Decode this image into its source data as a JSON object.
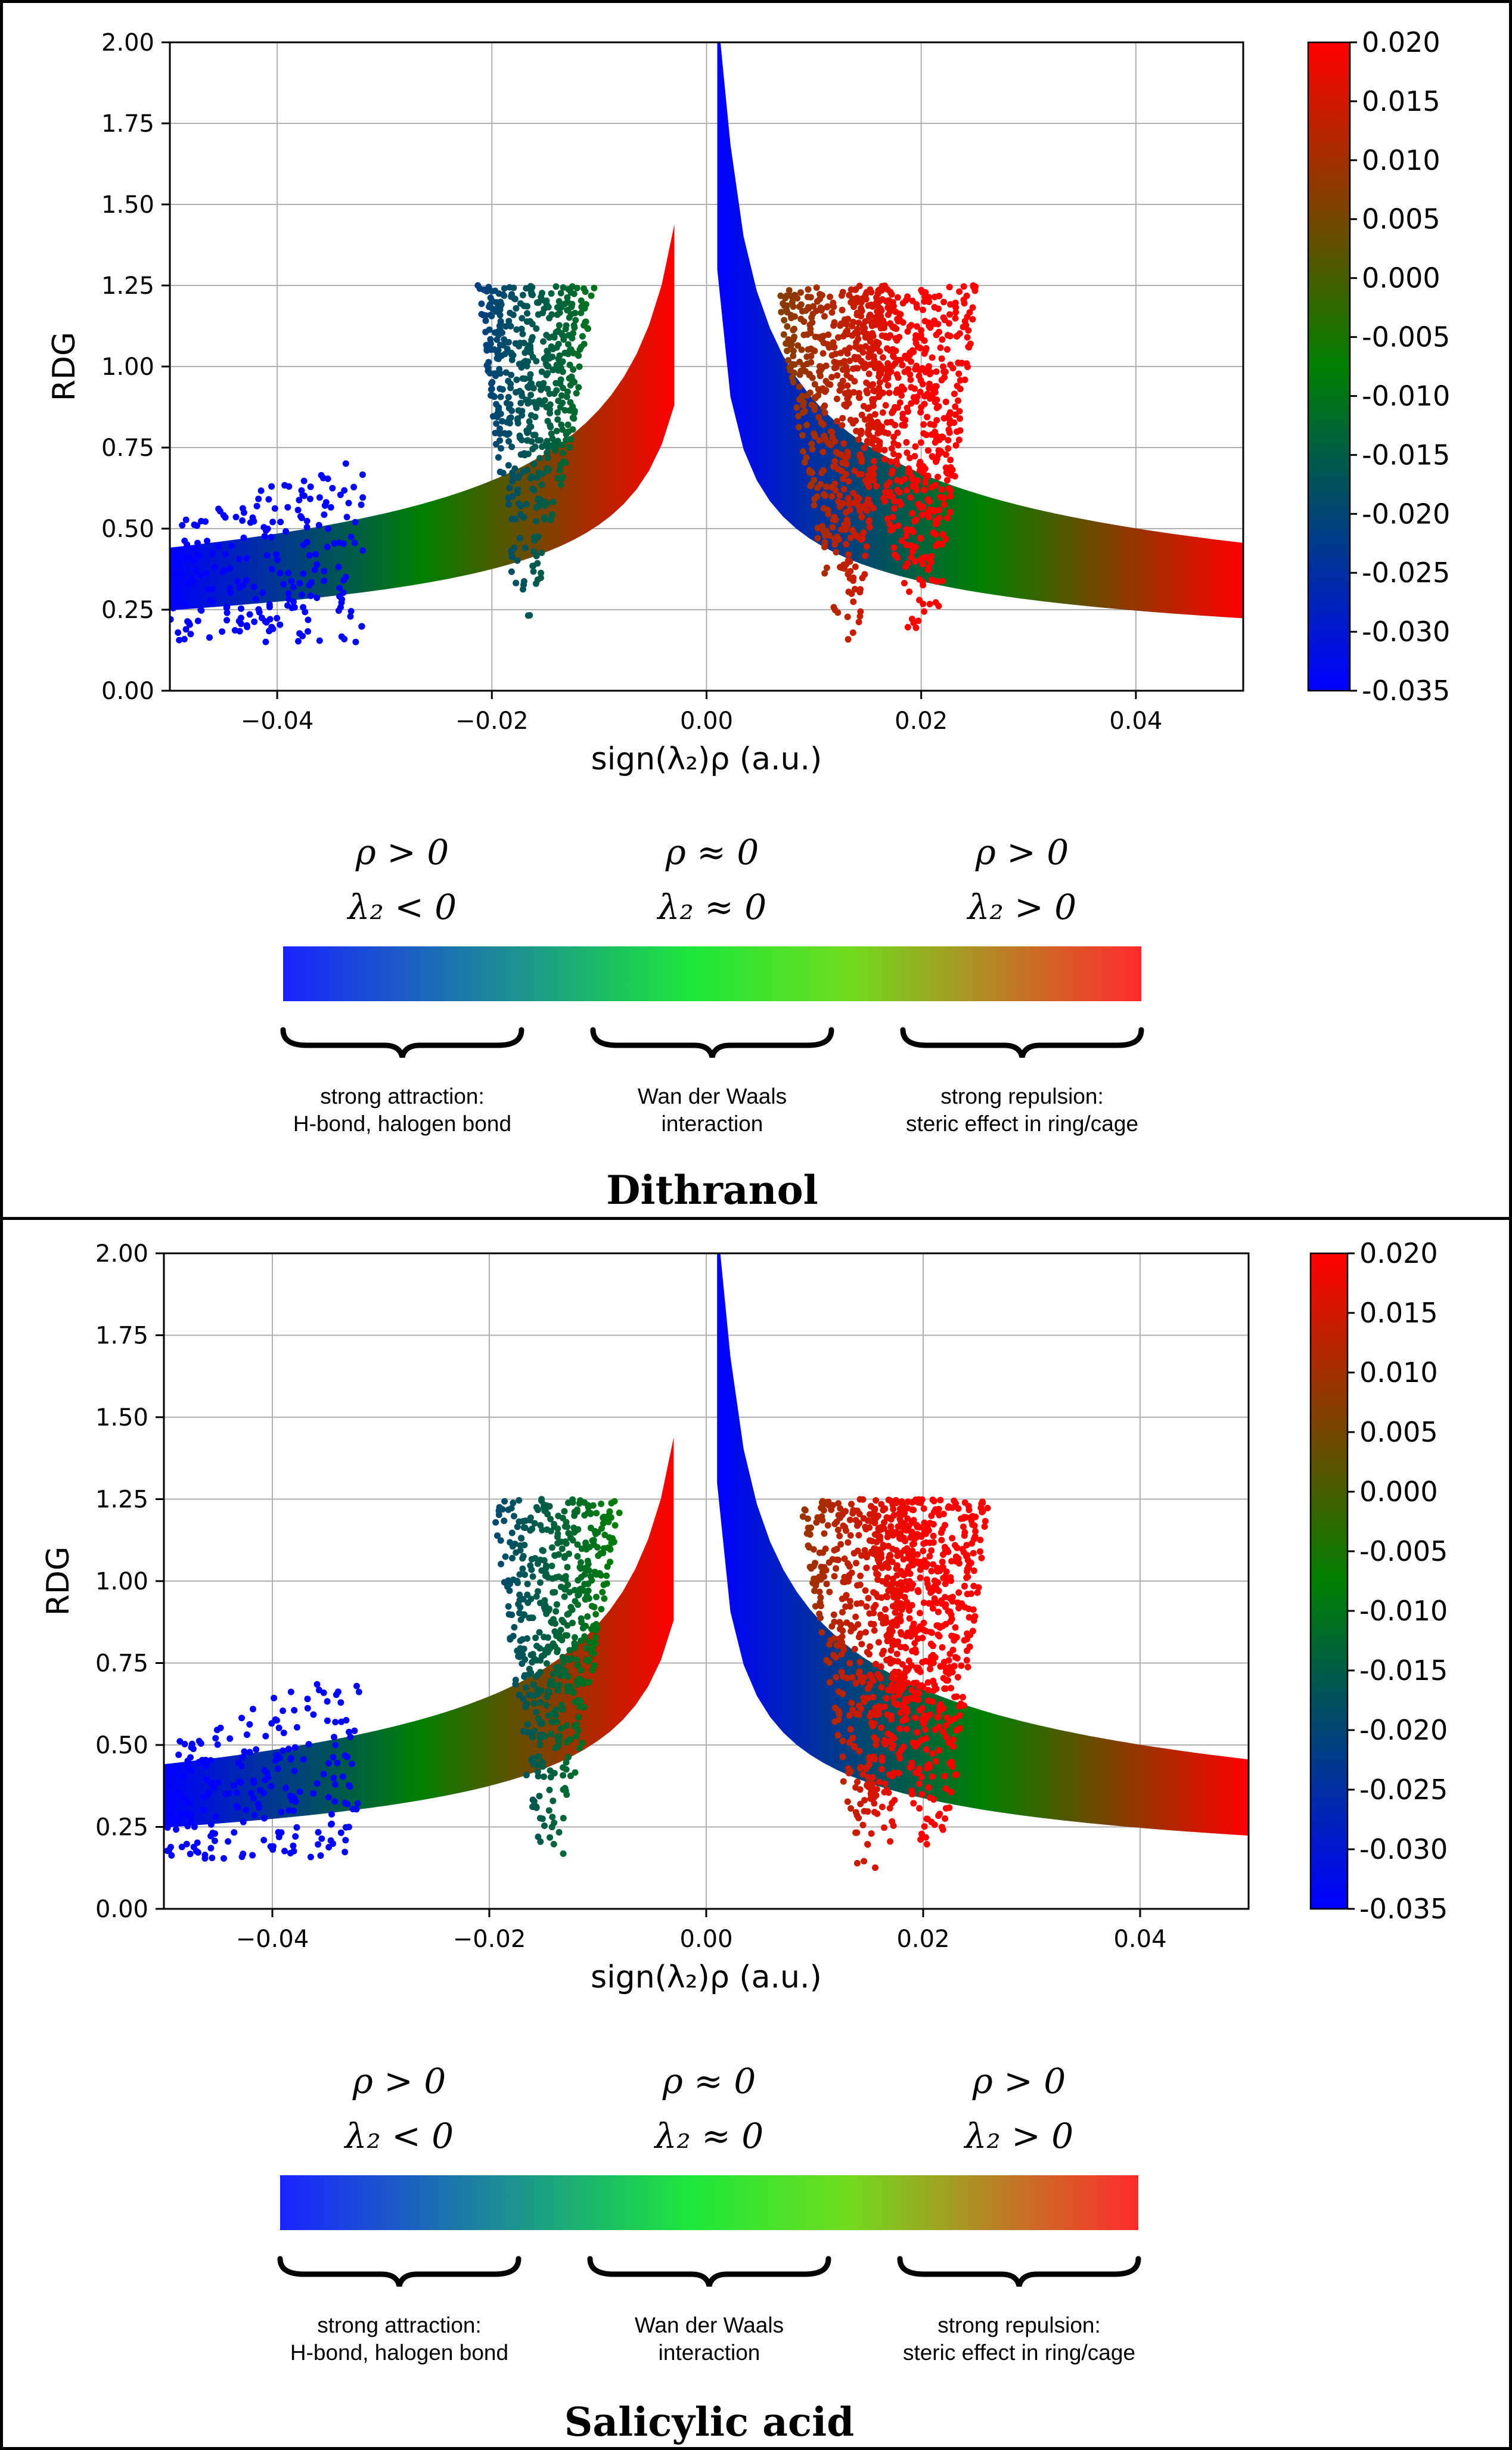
{
  "colors": {
    "scatter_ramp": [
      "#0000ff",
      "#008000",
      "#ff0000"
    ],
    "bar_ramp": [
      "#1a23ff",
      "#1de83a",
      "#6fdc1e",
      "#ff2b2b"
    ]
  },
  "legend": {
    "conditions": [
      {
        "rho": "ρ > 0",
        "lambda": "λ₂ < 0"
      },
      {
        "rho": "ρ ≈ 0",
        "lambda": "λ₂ ≈ 0"
      },
      {
        "rho": "ρ > 0",
        "lambda": "λ₂ > 0"
      }
    ],
    "categories": [
      {
        "line1": "strong attraction:",
        "line2": "H-bond, halogen bond"
      },
      {
        "line1": "Wan der Waals",
        "line2": "interaction"
      },
      {
        "line1": "strong repulsion:",
        "line2": "steric effect in ring/cage"
      }
    ]
  },
  "panels": [
    {
      "title": "Dithranol"
    },
    {
      "title": "Salicylic acid"
    }
  ],
  "chart_data": [
    {
      "type": "scatter",
      "title": "Dithranol",
      "xlabel": "sign(λ₂)ρ (a.u.)",
      "ylabel": "RDG",
      "xlim": [
        -0.05,
        0.05
      ],
      "ylim": [
        0,
        2
      ],
      "xticks": [
        "−0.04",
        "−0.02",
        "0.00",
        "0.02",
        "0.04"
      ],
      "xtick_values": [
        -0.04,
        -0.02,
        0,
        0.02,
        0.04
      ],
      "yticks": [
        "0.00",
        "0.25",
        "0.50",
        "0.75",
        "1.00",
        "1.25",
        "1.50",
        "1.75",
        "2.00"
      ],
      "ytick_values": [
        0,
        0.25,
        0.5,
        0.75,
        1,
        1.25,
        1.5,
        1.75,
        2
      ],
      "grid": true,
      "colorbar": {
        "range": [
          -0.035,
          0.02
        ],
        "ticks": [
          "0.020",
          "0.015",
          "0.010",
          "0.005",
          "0.000",
          "-0.005",
          "-0.010",
          "-0.015",
          "-0.020",
          "-0.025",
          "-0.030",
          "-0.035"
        ],
        "tick_values": [
          0.02,
          0.015,
          0.01,
          0.005,
          0,
          -0.005,
          -0.01,
          -0.015,
          -0.02,
          -0.025,
          -0.03,
          -0.035
        ]
      },
      "spikes": [
        {
          "name": "attractive-spike",
          "center": -0.0165,
          "min_rdg": 0.22
        },
        {
          "name": "repulsive-spike",
          "center": 0.02,
          "min_rdg": 0.11
        },
        {
          "name": "repulsive-spike-2",
          "center": 0.013,
          "min_rdg": 0.15
        }
      ]
    },
    {
      "type": "scatter",
      "title": "Salicylic acid",
      "xlabel": "sign(λ₂)ρ (a.u.)",
      "ylabel": "RDG",
      "xlim": [
        -0.05,
        0.05
      ],
      "ylim": [
        0,
        2
      ],
      "xticks": [
        "−0.04",
        "−0.02",
        "0.00",
        "0.02",
        "0.04"
      ],
      "xtick_values": [
        -0.04,
        -0.02,
        0,
        0.02,
        0.04
      ],
      "yticks": [
        "0.00",
        "0.25",
        "0.50",
        "0.75",
        "1.00",
        "1.25",
        "1.50",
        "1.75",
        "2.00"
      ],
      "ytick_values": [
        0,
        0.25,
        0.5,
        0.75,
        1,
        1.25,
        1.5,
        1.75,
        2
      ],
      "grid": true,
      "colorbar": {
        "range": [
          -0.035,
          0.02
        ],
        "ticks": [
          "0.020",
          "0.015",
          "0.010",
          "0.005",
          "0.000",
          "-0.005",
          "-0.010",
          "-0.015",
          "-0.020",
          "-0.025",
          "-0.030",
          "-0.035"
        ],
        "tick_values": [
          0.02,
          0.015,
          0.01,
          0.005,
          0,
          -0.005,
          -0.01,
          -0.015,
          -0.02,
          -0.025,
          -0.03,
          -0.035
        ]
      },
      "spikes": [
        {
          "name": "attractive-spike",
          "center": -0.0145,
          "min_rdg": 0.12
        },
        {
          "name": "repulsive-spike",
          "center": 0.0155,
          "min_rdg": 0.05
        },
        {
          "name": "repulsive-spike-2",
          "center": 0.021,
          "min_rdg": 0.15
        }
      ]
    }
  ]
}
